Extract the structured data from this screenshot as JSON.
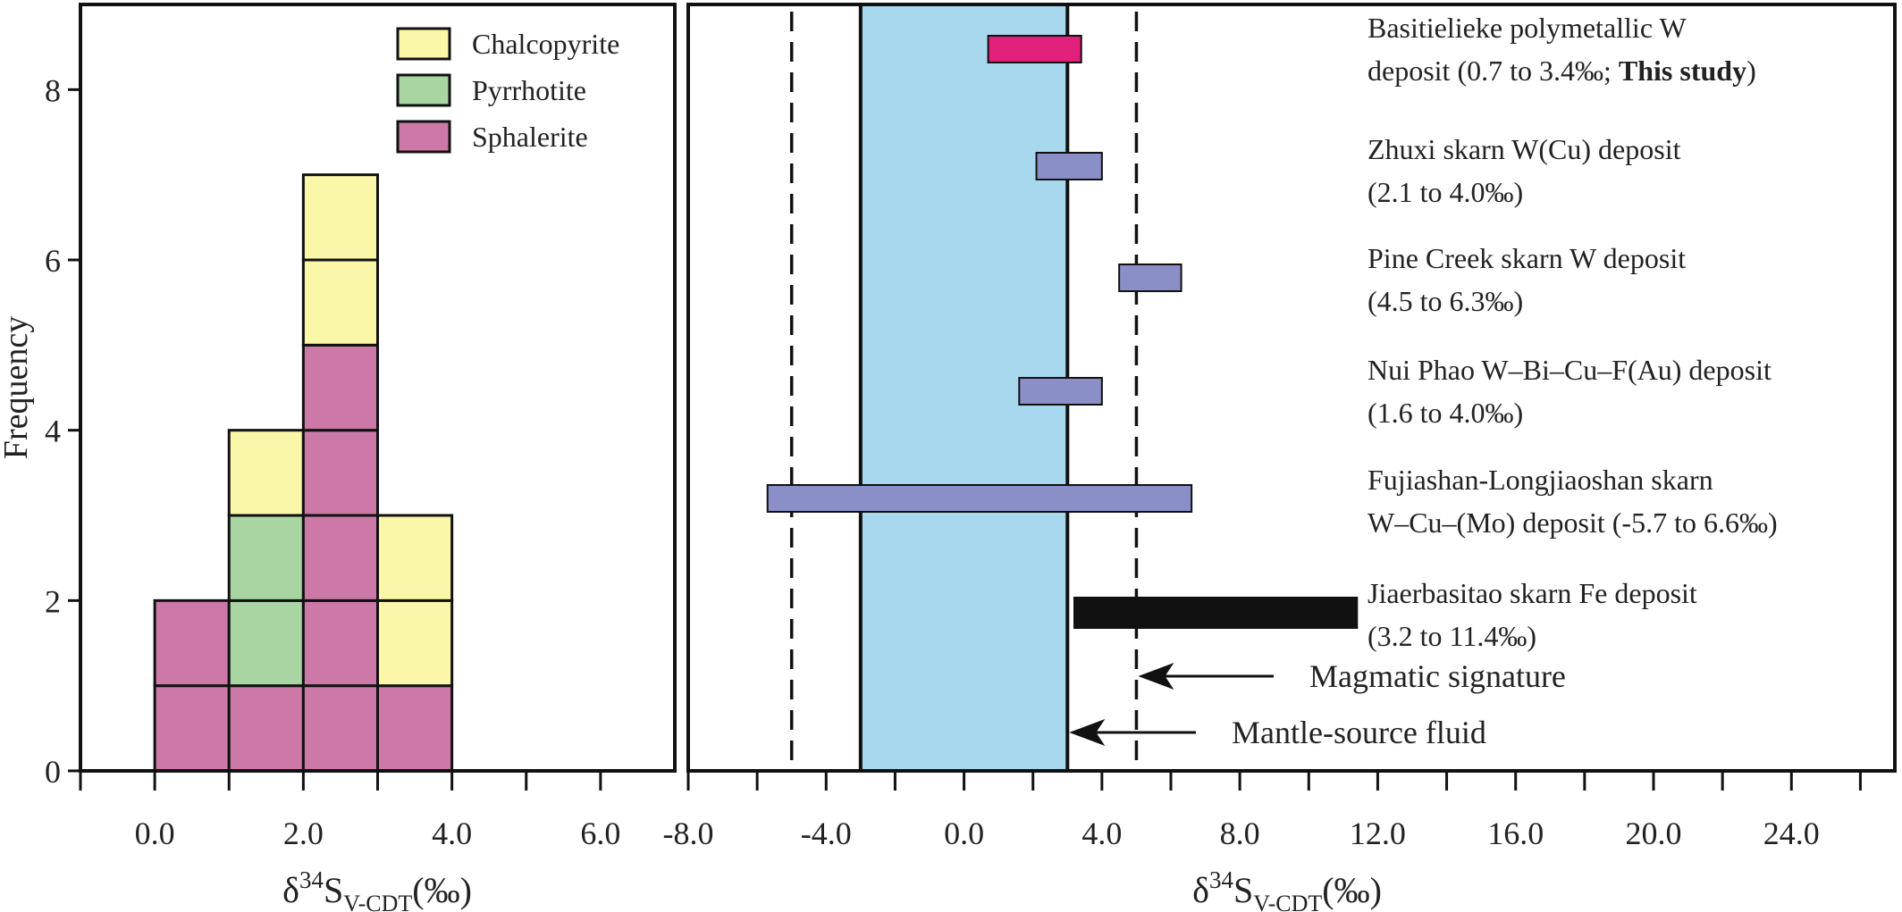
{
  "chart_data": [
    {
      "type": "bar",
      "subtype": "stacked-histogram",
      "ylabel": "Frequency",
      "xlabel": {
        "base": "δ",
        "sup": "34",
        "main": "S",
        "sub": "V-CDT",
        "unit": "(‰)"
      },
      "xlim": [
        -1.0,
        7.0
      ],
      "ylim": [
        0,
        9
      ],
      "xticks": [
        0,
        2,
        4,
        6
      ],
      "xtick_labels": [
        "0.0",
        "2.0",
        "4.0",
        "6.0"
      ],
      "yticks": [
        0,
        2,
        4,
        6,
        8
      ],
      "ytick_labels": [
        "0",
        "2",
        "4",
        "6",
        "8"
      ],
      "grid": false,
      "legend_position": "top-right",
      "bins": [
        [
          0,
          1
        ],
        [
          1,
          2
        ],
        [
          2,
          3
        ],
        [
          3,
          4
        ]
      ],
      "series": [
        {
          "name": "Sphalerite",
          "color": "#cc79a7",
          "values": [
            2,
            1,
            5,
            1
          ]
        },
        {
          "name": "Pyrrhotite",
          "color": "#a8d5a2",
          "values": [
            0,
            2,
            0,
            0
          ]
        },
        {
          "name": "Chalcopyrite",
          "color": "#fbf7a8",
          "values": [
            0,
            1,
            2,
            2
          ]
        }
      ],
      "legend_order": [
        "Chalcopyrite",
        "Pyrrhotite",
        "Sphalerite"
      ]
    },
    {
      "type": "range",
      "xlabel": {
        "base": "δ",
        "sup": "34",
        "main": "S",
        "sub": "V-CDT",
        "unit": "(‰)"
      },
      "xlim": [
        -8.0,
        27.0
      ],
      "xticks": [
        -8,
        -4,
        0,
        4,
        8,
        12,
        16,
        20,
        24
      ],
      "xtick_labels": [
        "-8.0",
        "-4.0",
        "0.0",
        "4.0",
        "8.0",
        "12.0",
        "16.0",
        "20.0",
        "24.0"
      ],
      "band": {
        "x0": -3,
        "x1": 3,
        "color": "#a8d8ee"
      },
      "dashed_lines": [
        -5,
        5
      ],
      "deposits": [
        {
          "range": [
            0.7,
            3.4
          ],
          "color": "#e0207a",
          "label_line1": "Basitielieke polymetallic W",
          "label_line2": "deposit (0.7 to 3.4‰; ",
          "label_bold": "This study",
          "label_end": ")"
        },
        {
          "range": [
            2.1,
            4.0
          ],
          "color": "#8b8fc7",
          "label_line1": "Zhuxi skarn W(Cu) deposit",
          "label_line2": "(2.1 to 4.0‰)"
        },
        {
          "range": [
            4.5,
            6.3
          ],
          "color": "#8b8fc7",
          "label_line1": "Pine Creek skarn W deposit",
          "label_line2": "(4.5 to 6.3‰)"
        },
        {
          "range": [
            1.6,
            4.0
          ],
          "color": "#8b8fc7",
          "label_line1": "Nui Phao W–Bi–Cu–F(Au) deposit",
          "label_line2": "(1.6 to 4.0‰)"
        },
        {
          "range": [
            -5.7,
            6.6
          ],
          "color": "#8b8fc7",
          "label_line1": "Fujiashan-Longjiaoshan skarn",
          "label_line2": "W–Cu–(Mo) deposit (-5.7 to 6.6‰)"
        },
        {
          "range": [
            3.2,
            11.4
          ],
          "color": "#111111",
          "label_line1": "Jiaerbasitao skarn Fe deposit",
          "label_line2": "(3.2 to 11.4‰)"
        }
      ],
      "annotations": [
        {
          "text": "Magmatic signature",
          "target_x": 5
        },
        {
          "text": "Mantle-source fluid",
          "target_x": 3
        }
      ]
    }
  ]
}
